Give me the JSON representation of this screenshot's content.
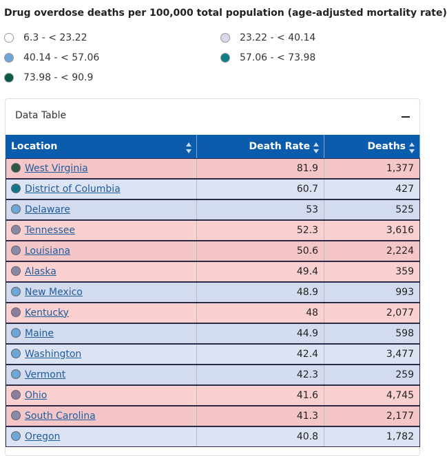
{
  "title": "Drug overdose deaths per 100,000 total population (age-adjusted mortality rate)",
  "legend": [
    {
      "label": "6.3 - < 23.22",
      "color": "#ffffff"
    },
    {
      "label": "23.22 - < 40.14",
      "color": "#d9d9ee"
    },
    {
      "label": "40.14 - < 57.06",
      "color": "#6fa6d8"
    },
    {
      "label": "57.06 - < 73.98",
      "color": "#0f7d85"
    },
    {
      "label": "73.98 - < 90.9",
      "color": "#0b5a48"
    }
  ],
  "panel": {
    "title": "Data Table"
  },
  "table": {
    "columns": [
      "Location",
      "Death Rate",
      "Deaths"
    ],
    "rows": [
      {
        "cells": [
          "West Virginia",
          "81.9",
          "1,377"
        ],
        "dot_color": "#2e5546",
        "row_color": "#f4c6c8"
      },
      {
        "cells": [
          "District of Columbia",
          "60.7",
          "427"
        ],
        "dot_color": "#14768a",
        "row_color": "#dce3f3"
      },
      {
        "cells": [
          "Delaware",
          "53",
          "525"
        ],
        "dot_color": "#6fa6d8",
        "row_color": "#d3dbee"
      },
      {
        "cells": [
          "Tennessee",
          "52.3",
          "3,616"
        ],
        "dot_color": "#8a88a6",
        "row_color": "#fbd0d1"
      },
      {
        "cells": [
          "Louisiana",
          "50.6",
          "2,224"
        ],
        "dot_color": "#8a88a6",
        "row_color": "#f4c6c8"
      },
      {
        "cells": [
          "Alaska",
          "49.4",
          "359"
        ],
        "dot_color": "#8a88a6",
        "row_color": "#fbd0d1"
      },
      {
        "cells": [
          "New Mexico",
          "48.9",
          "993"
        ],
        "dot_color": "#6fa6d8",
        "row_color": "#d3dbee"
      },
      {
        "cells": [
          "Kentucky",
          "48",
          "2,077"
        ],
        "dot_color": "#8a7ea0",
        "row_color": "#fbd0d1"
      },
      {
        "cells": [
          "Maine",
          "44.9",
          "598"
        ],
        "dot_color": "#6fa6d8",
        "row_color": "#d3dbee"
      },
      {
        "cells": [
          "Washington",
          "42.4",
          "3,477"
        ],
        "dot_color": "#6fa6d8",
        "row_color": "#dce3f3"
      },
      {
        "cells": [
          "Vermont",
          "42.3",
          "259"
        ],
        "dot_color": "#6fa6d8",
        "row_color": "#d3dbee"
      },
      {
        "cells": [
          "Ohio",
          "41.6",
          "4,745"
        ],
        "dot_color": "#8a7ea0",
        "row_color": "#fbd0d1"
      },
      {
        "cells": [
          "South Carolina",
          "41.3",
          "2,177"
        ],
        "dot_color": "#8a88a6",
        "row_color": "#f4c6c8"
      },
      {
        "cells": [
          "Oregon",
          "40.8",
          "1,782"
        ],
        "dot_color": "#6fa6d8",
        "row_color": "#dce3f3"
      }
    ]
  }
}
